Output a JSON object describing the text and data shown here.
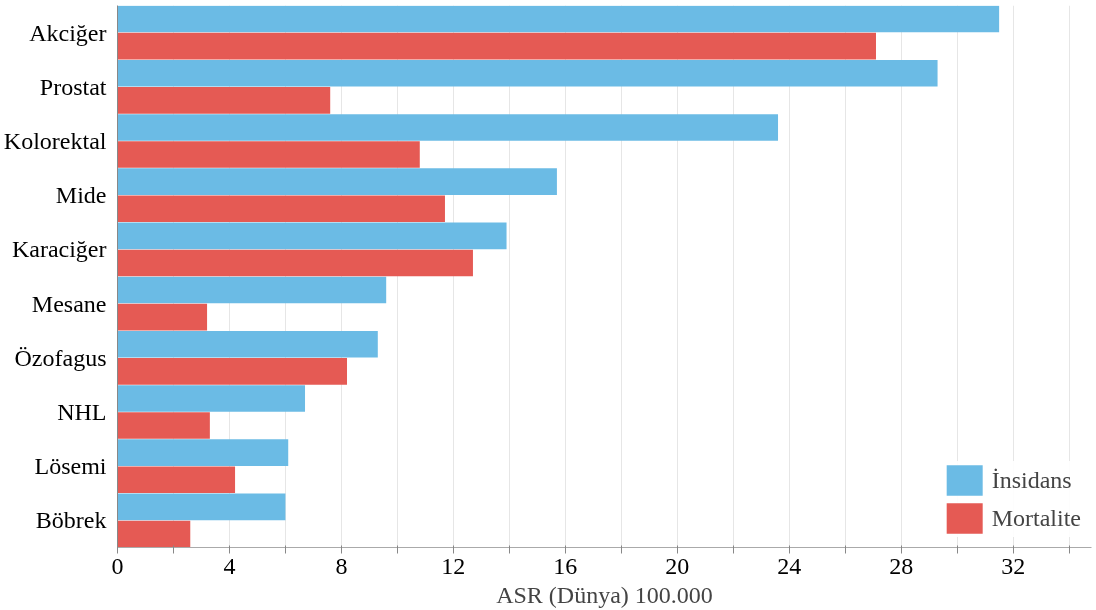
{
  "chart_data": {
    "type": "bar",
    "orientation": "horizontal",
    "xlabel": "ASR (Dünya) 100.000",
    "categories": [
      "Akciğer",
      "Prostat",
      "Kolorektal",
      "Mide",
      "Karaciğer",
      "Mesane",
      "Özofagus",
      "NHL",
      "Lösemi",
      "Böbrek"
    ],
    "series": [
      {
        "name": "İnsidans",
        "color": "#6bbbe5",
        "values": [
          31.5,
          29.3,
          23.6,
          15.7,
          13.9,
          9.6,
          9.3,
          6.7,
          6.1,
          6.0
        ]
      },
      {
        "name": "Mortalite",
        "color": "#e55a54",
        "values": [
          27.1,
          7.6,
          10.8,
          11.7,
          12.7,
          3.2,
          8.2,
          3.3,
          4.2,
          2.6
        ]
      }
    ],
    "xlim": [
      0,
      34.8
    ],
    "xticks": [
      0,
      {
        "value": 2,
        "label": null
      },
      4,
      {
        "value": 6,
        "label": null
      },
      8,
      {
        "value": 10,
        "label": null
      },
      12,
      {
        "value": 14,
        "label": null
      },
      16,
      {
        "value": 18,
        "label": null
      },
      20,
      {
        "value": 22,
        "label": null
      },
      24,
      {
        "value": 26,
        "label": null
      },
      28,
      {
        "value": 30,
        "label": null
      },
      32,
      {
        "value": 34,
        "label": null
      }
    ],
    "grid": "x",
    "legend": "bottom right"
  }
}
